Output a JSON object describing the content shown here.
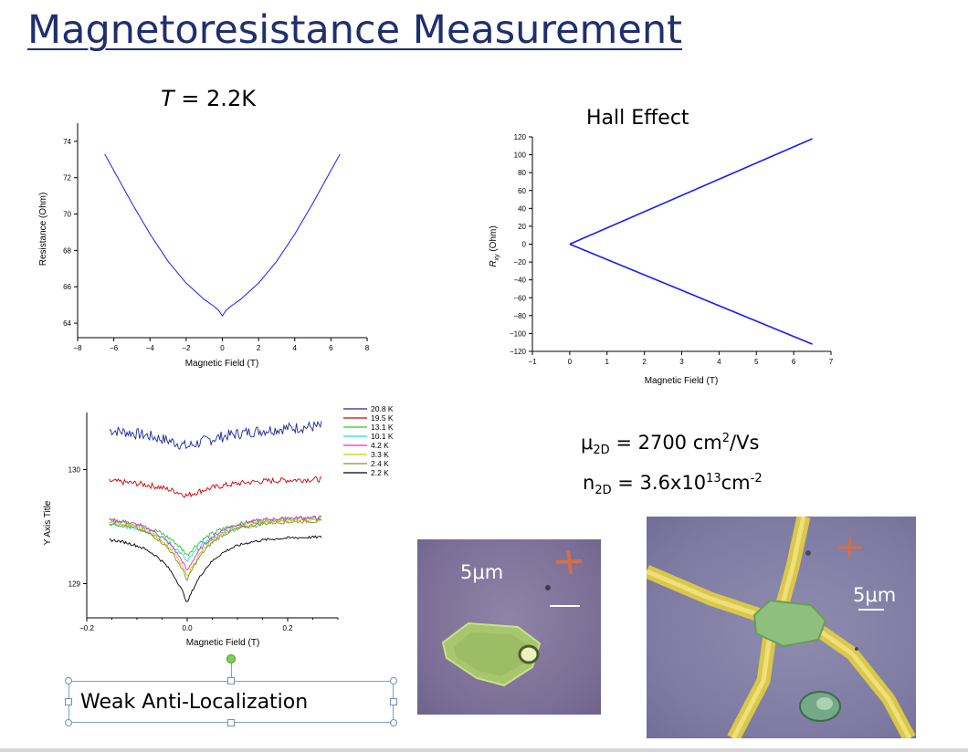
{
  "slide": {
    "title": "Magnetoresistance Measurement",
    "stats": {
      "mu_symbol": "μ",
      "mu_sub": "2D",
      "mu_value": " = 2700 cm",
      "mu_sup": "2",
      "mu_unit": "/Vs",
      "n_symbol": "n",
      "n_sub": "2D",
      "n_value": " = 3.6x10",
      "n_sup": "13",
      "n_unit": "cm",
      "n_unit_sup": "-2"
    },
    "photo1_label": "5μm",
    "photo2_label": "5μm",
    "textbox_text": "Weak Anti-Localization"
  },
  "charts": {
    "mr": {
      "title_italic": "T",
      "title_rest": " = 2.2K",
      "xlabel": "Magnetic Field (T)",
      "ylabel": "Resistance (Ohm)",
      "xticks": [
        "−8",
        "−6",
        "−4",
        "−2",
        "0",
        "2",
        "4",
        "6",
        "8"
      ],
      "yticks": [
        "64",
        "66",
        "68",
        "70",
        "72",
        "74"
      ]
    },
    "hall": {
      "title": "Hall Effect",
      "xlabel": "Magnetic Field (T)",
      "ylabel_main": "R",
      "ylabel_sub": "xy",
      "ylabel_unit": " (Ohm)",
      "xticks": [
        "−1",
        "0",
        "1",
        "2",
        "3",
        "4",
        "5",
        "6",
        "7"
      ],
      "yticks": [
        "120",
        "100",
        "80",
        "60",
        "40",
        "20",
        "0",
        "−20",
        "−40",
        "−60",
        "−80",
        "−100",
        "−120"
      ]
    },
    "wal": {
      "xlabel": "Magnetic Field (T)",
      "ylabel": "Y Axis Title",
      "xticks": [
        "−0.2",
        "0.0",
        "0.2"
      ],
      "yticks": [
        "130",
        "129"
      ]
    }
  },
  "chart_data": [
    {
      "type": "line",
      "title": "T = 2.2K",
      "xlabel": "Magnetic Field (T)",
      "ylabel": "Resistance (Ohm)",
      "xlim": [
        -8,
        8
      ],
      "ylim": [
        63.2,
        75
      ],
      "series": [
        {
          "color": "#1a1aff",
          "x": [
            -6.5,
            -6,
            -5,
            -4,
            -3,
            -2,
            -1,
            -0.5,
            -0.2,
            0,
            0.2,
            0.5,
            1,
            2,
            3,
            4,
            5,
            6,
            6.5
          ],
          "y": [
            73.3,
            72.4,
            70.6,
            68.9,
            67.4,
            66.2,
            65.3,
            64.95,
            64.7,
            64.4,
            64.7,
            64.95,
            65.3,
            66.2,
            67.4,
            68.9,
            70.6,
            72.4,
            73.3
          ]
        }
      ]
    },
    {
      "type": "line",
      "title": "Hall Effect",
      "xlabel": "Magnetic Field (T)",
      "ylabel": "Rxy (Ohm)",
      "xlim": [
        -1,
        7
      ],
      "ylim": [
        -120,
        120
      ],
      "series": [
        {
          "color": "#1a1aff",
          "x": [
            0,
            6.5
          ],
          "y": [
            0,
            118
          ]
        },
        {
          "color": "#1a1aff",
          "x": [
            0,
            6.5
          ],
          "y": [
            0,
            -112
          ]
        }
      ]
    },
    {
      "type": "line",
      "xlabel": "Magnetic Field (T)",
      "ylabel": "Y Axis Title",
      "xlim": [
        -0.2,
        0.3
      ],
      "ylim": [
        128.7,
        130.5
      ],
      "series": [
        {
          "name": "20.8 K",
          "color": "#1a2a9a",
          "base": 130.4,
          "dip": 0.2,
          "width": 0.12,
          "noise": 0.05,
          "xmax": 0.27
        },
        {
          "name": "19.5 K",
          "color": "#d40000",
          "base": 129.92,
          "dip": 0.15,
          "width": 0.08,
          "noise": 0.025,
          "xmax": 0.27
        },
        {
          "name": "13.1 K",
          "color": "#22cc22",
          "base": 129.58,
          "dip": 0.33,
          "width": 0.06,
          "noise": 0.02,
          "xmax": 0.27
        },
        {
          "name": "10.1 K",
          "color": "#22dddd",
          "base": 129.54,
          "dip": 0.35,
          "width": 0.055,
          "noise": 0.02,
          "xmax": 0.15
        },
        {
          "name": "4.2 K",
          "color": "#ee22ee",
          "base": 129.58,
          "dip": 0.47,
          "width": 0.05,
          "noise": 0.015,
          "xmax": 0.27
        },
        {
          "name": "3.3 K",
          "color": "#cccc00",
          "base": 129.56,
          "dip": 0.5,
          "width": 0.05,
          "noise": 0.015,
          "xmax": 0.27
        },
        {
          "name": "2.4 K",
          "color": "#8a8a3a",
          "base": 129.55,
          "dip": 0.52,
          "width": 0.05,
          "noise": 0.015,
          "xmax": 0.27
        },
        {
          "name": "2.2 K",
          "color": "#000000",
          "base": 129.41,
          "dip": 0.58,
          "width": 0.05,
          "noise": 0.012,
          "xmax": 0.27
        }
      ]
    }
  ]
}
